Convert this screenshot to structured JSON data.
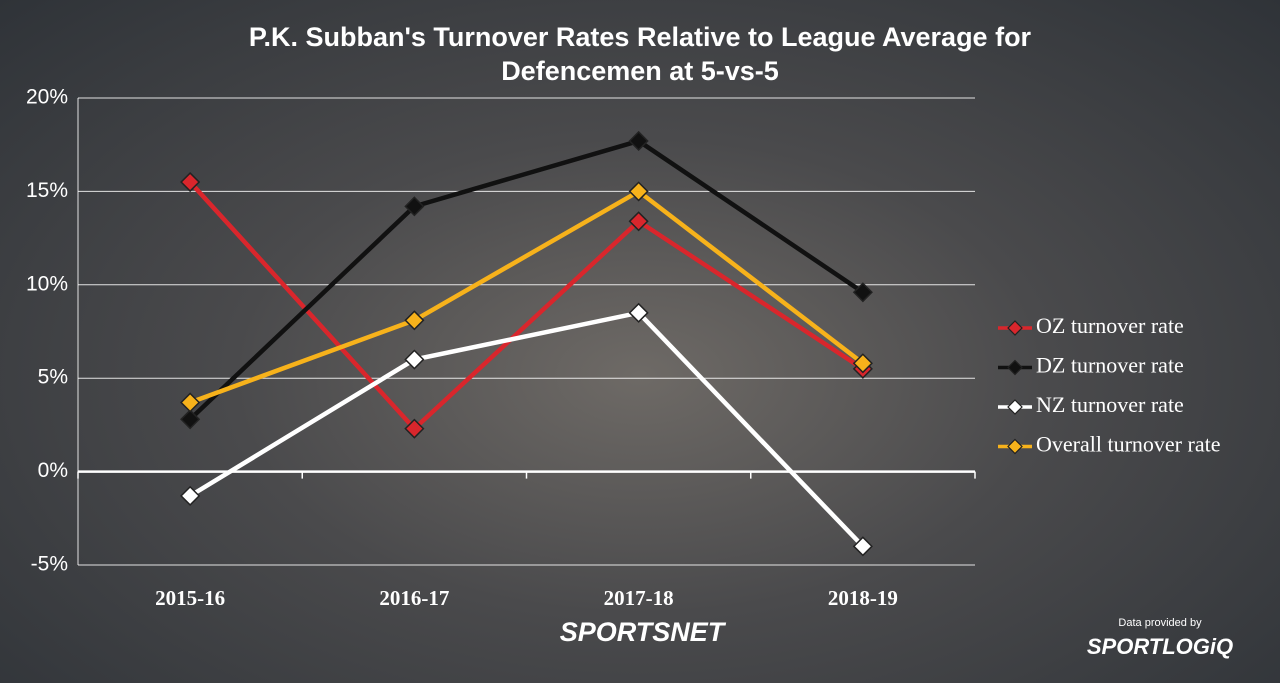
{
  "chart_data": {
    "type": "line",
    "title": "P.K. Subban's Turnover Rates Relative to League Average for Defencemen at 5-vs-5",
    "categories": [
      "2015-16",
      "2016-17",
      "2017-18",
      "2018-19"
    ],
    "series": [
      {
        "name": "OZ turnover rate",
        "color": "#d9262c",
        "values": [
          15.5,
          2.3,
          13.4,
          5.5
        ]
      },
      {
        "name": "DZ turnover rate",
        "color": "#111111",
        "values": [
          2.8,
          14.2,
          17.7,
          9.6
        ]
      },
      {
        "name": "NZ turnover rate",
        "color": "#ffffff",
        "values": [
          -1.3,
          6.0,
          8.5,
          -4.0
        ]
      },
      {
        "name": "Overall turnover rate",
        "color": "#f7b21b",
        "values": [
          3.7,
          8.1,
          15.0,
          5.8
        ]
      }
    ],
    "ylim": [
      -5,
      20
    ],
    "yticks": [
      {
        "value": -5,
        "label": "-5%"
      },
      {
        "value": 0,
        "label": "0%"
      },
      {
        "value": 5,
        "label": "5%"
      },
      {
        "value": 10,
        "label": "10%"
      },
      {
        "value": 15,
        "label": "15%"
      },
      {
        "value": 20,
        "label": "20%"
      }
    ],
    "grid": true,
    "legend": "right",
    "credits": {
      "data_note": "Data provided by",
      "brand": "SPORTSNET",
      "source": "SPORTLOGiQ"
    }
  }
}
